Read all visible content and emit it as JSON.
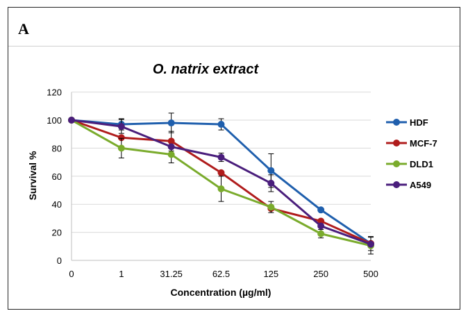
{
  "panel_label": "A",
  "chart_data": {
    "type": "line",
    "title": "O. natrix extract",
    "xlabel": "Concentration (µg/ml)",
    "ylabel": "Survival %",
    "categories": [
      "0",
      "1",
      "31.25",
      "62.5",
      "125",
      "250",
      "500"
    ],
    "ylim": [
      0,
      120
    ],
    "yticks": [
      0,
      20,
      40,
      60,
      80,
      100,
      120
    ],
    "grid": "horizontal",
    "legend_position": "right",
    "series": [
      {
        "name": "HDF",
        "color": "#1f5fad",
        "values": [
          100,
          97,
          98,
          97,
          64,
          36,
          12
        ],
        "errors": [
          0,
          4,
          7,
          4,
          12,
          0,
          5
        ]
      },
      {
        "name": "MCF-7",
        "color": "#b01c1c",
        "values": [
          100,
          87.5,
          85,
          62.5,
          37,
          28,
          12
        ],
        "errors": [
          0,
          0,
          7,
          0,
          0,
          0,
          0
        ]
      },
      {
        "name": "DLD1",
        "color": "#7aab2c",
        "values": [
          100,
          80,
          75.5,
          51,
          38,
          19,
          10.5
        ],
        "errors": [
          0,
          7,
          6,
          9,
          4,
          3,
          6
        ]
      },
      {
        "name": "A549",
        "color": "#4a1e7c",
        "values": [
          100,
          95.5,
          81,
          73.5,
          55,
          24.5,
          11.5
        ],
        "errors": [
          0,
          5,
          0,
          3,
          6,
          0,
          0
        ]
      }
    ]
  }
}
